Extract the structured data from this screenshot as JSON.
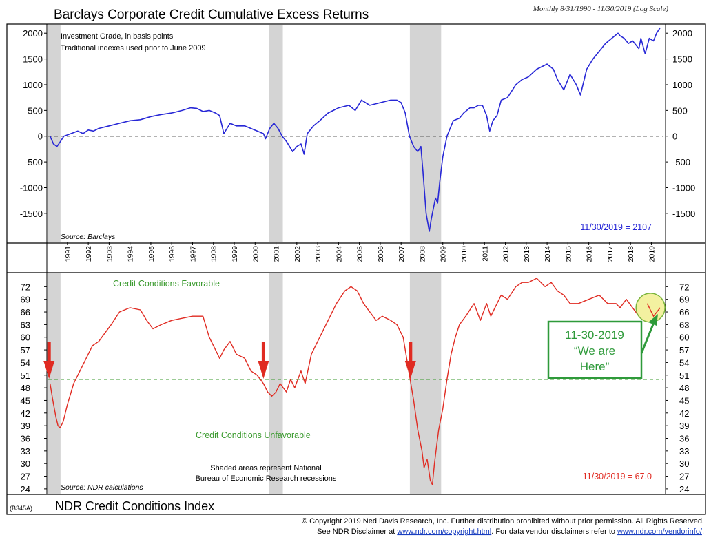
{
  "header": {
    "title_top": "Barclays Corporate Credit Cumulative Excess Returns",
    "date_range": "Monthly 8/31/1990 - 11/30/2019 (Log Scale)",
    "code": "(B345A)",
    "title_bottom": "NDR Credit Conditions Index"
  },
  "colors": {
    "top_line": "#2727d6",
    "bottom_line": "#e02b22",
    "recession": "#d4d4d4",
    "favorable_text": "#3a9a2e",
    "callout": "#2e9a3a",
    "highlight_fill": "#f3f1a0"
  },
  "recessions": [
    {
      "start": 1990.58,
      "end": 1991.17
    },
    {
      "start": 2001.17,
      "end": 2001.83
    },
    {
      "start": 2007.92,
      "end": 2009.42
    }
  ],
  "years": [
    "1991",
    "1992",
    "1993",
    "1994",
    "1995",
    "1996",
    "1997",
    "1998",
    "1999",
    "2000",
    "2001",
    "2002",
    "2003",
    "2004",
    "2005",
    "2006",
    "2007",
    "2008",
    "2009",
    "2010",
    "2011",
    "2012",
    "2013",
    "2014",
    "2015",
    "2016",
    "2017",
    "2018",
    "2019"
  ],
  "chart_data": [
    {
      "type": "line",
      "title": "Barclays Corporate Credit Cumulative Excess Returns",
      "subtitle": "Investment Grade, in basis points",
      "note": "Traditional indexes used prior to June 2009",
      "source": "Source: Barclays",
      "ylabel": "basis points",
      "ylim": [
        -2050,
        2150
      ],
      "yticks": [
        "2000",
        "1500",
        "1000",
        "500",
        "0",
        "-500",
        "-1000",
        "-1500"
      ],
      "reference_line": 0,
      "last_value_label": "11/30/2019 = 2107",
      "series": [
        {
          "name": "Cumulative Excess Returns",
          "x": [
            1990.67,
            1990.83,
            1991.0,
            1991.17,
            1991.33,
            1991.67,
            1992.0,
            1992.25,
            1992.5,
            1992.75,
            1993.0,
            1993.5,
            1994.0,
            1994.5,
            1995.0,
            1995.5,
            1996.0,
            1996.5,
            1997.0,
            1997.4,
            1997.7,
            1998.0,
            1998.3,
            1998.6,
            1998.8,
            1999.0,
            1999.3,
            1999.6,
            2000.0,
            2000.3,
            2000.6,
            2000.9,
            2001.0,
            2001.2,
            2001.4,
            2001.6,
            2001.8,
            2002.0,
            2002.3,
            2002.5,
            2002.7,
            2002.85,
            2003.0,
            2003.3,
            2003.6,
            2004.0,
            2004.5,
            2005.0,
            2005.3,
            2005.6,
            2006.0,
            2006.5,
            2007.0,
            2007.3,
            2007.5,
            2007.7,
            2007.9,
            2008.1,
            2008.3,
            2008.45,
            2008.55,
            2008.7,
            2008.85,
            2008.95,
            2009.05,
            2009.15,
            2009.25,
            2009.35,
            2009.5,
            2009.7,
            2010.0,
            2010.3,
            2010.5,
            2010.8,
            2011.0,
            2011.2,
            2011.4,
            2011.6,
            2011.75,
            2011.9,
            2012.1,
            2012.3,
            2012.6,
            2013.0,
            2013.3,
            2013.6,
            2014.0,
            2014.5,
            2014.8,
            2015.0,
            2015.3,
            2015.6,
            2015.9,
            2016.1,
            2016.4,
            2016.7,
            2017.0,
            2017.3,
            2017.6,
            2017.9,
            2018.0,
            2018.2,
            2018.4,
            2018.6,
            2018.9,
            2019.0,
            2019.2,
            2019.4,
            2019.6,
            2019.75,
            2019.92
          ],
          "y": [
            0,
            -150,
            -200,
            -100,
            0,
            50,
            100,
            50,
            120,
            100,
            150,
            200,
            250,
            300,
            320,
            380,
            420,
            450,
            500,
            550,
            540,
            480,
            500,
            450,
            400,
            50,
            250,
            200,
            200,
            150,
            100,
            50,
            -50,
            150,
            250,
            150,
            0,
            -100,
            -300,
            -200,
            -150,
            -350,
            50,
            200,
            300,
            450,
            550,
            600,
            500,
            700,
            600,
            650,
            700,
            700,
            650,
            450,
            0,
            -200,
            -300,
            -200,
            -700,
            -1500,
            -1850,
            -1600,
            -1400,
            -1200,
            -1300,
            -900,
            -400,
            0,
            300,
            350,
            450,
            550,
            550,
            600,
            600,
            400,
            100,
            300,
            400,
            700,
            750,
            1000,
            1100,
            1150,
            1300,
            1400,
            1300,
            1100,
            900,
            1200,
            1000,
            800,
            1300,
            1500,
            1650,
            1800,
            1900,
            2000,
            1950,
            1900,
            1800,
            1850,
            1700,
            1900,
            1600,
            1900,
            1850,
            2000,
            2107
          ]
        }
      ]
    },
    {
      "type": "line",
      "title": "NDR Credit Conditions Index",
      "source": "Source: NDR calculations",
      "ylim": [
        23,
        75
      ],
      "yticks": [
        "72",
        "69",
        "66",
        "63",
        "60",
        "57",
        "54",
        "51",
        "48",
        "45",
        "42",
        "39",
        "36",
        "33",
        "30",
        "27",
        "24"
      ],
      "reference_line": 50,
      "upper_label": "Credit Conditions Favorable",
      "lower_label": "Credit Conditions Unfavorable",
      "recession_note_1": "Shaded areas represent National",
      "recession_note_2": "Bureau of Economic Research recessions",
      "last_value_label": "11/30/2019 = 67.0",
      "callout_line1": "11-30-2019",
      "callout_line2": "“We are",
      "callout_line3": "Here”",
      "signal_arrows_x": [
        1990.62,
        2000.9,
        2007.95
      ],
      "series": [
        {
          "name": "NDR Credit Conditions Index",
          "x": [
            1990.67,
            1990.8,
            1990.95,
            1991.05,
            1991.15,
            1991.3,
            1991.5,
            1991.8,
            1992.1,
            1992.4,
            1992.7,
            1993.0,
            1993.3,
            1993.6,
            1994.0,
            1994.5,
            1995.0,
            1995.3,
            1995.6,
            1996.0,
            1996.5,
            1997.0,
            1997.5,
            1998.0,
            1998.3,
            1998.6,
            1998.8,
            1999.0,
            1999.3,
            1999.6,
            2000.0,
            2000.3,
            2000.6,
            2000.9,
            2001.1,
            2001.3,
            2001.5,
            2001.7,
            2002.0,
            2002.2,
            2002.4,
            2002.7,
            2002.9,
            2003.2,
            2003.6,
            2004.0,
            2004.4,
            2004.8,
            2005.1,
            2005.4,
            2005.7,
            2006.0,
            2006.3,
            2006.6,
            2007.0,
            2007.3,
            2007.6,
            2007.9,
            2008.1,
            2008.3,
            2008.5,
            2008.6,
            2008.75,
            2008.9,
            2009.0,
            2009.1,
            2009.2,
            2009.3,
            2009.5,
            2009.7,
            2009.9,
            2010.1,
            2010.3,
            2010.6,
            2011.0,
            2011.3,
            2011.6,
            2011.8,
            2012.0,
            2012.3,
            2012.6,
            2013.0,
            2013.3,
            2013.6,
            2014.0,
            2014.4,
            2014.7,
            2015.0,
            2015.3,
            2015.6,
            2016.0,
            2016.5,
            2017.0,
            2017.4,
            2017.8,
            2018.0,
            2018.3,
            2018.6,
            2018.9,
            2019.1,
            2019.3,
            2019.6,
            2019.92
          ],
          "y": [
            49,
            45,
            41,
            39,
            38.5,
            40,
            44,
            49,
            52,
            55,
            58,
            59,
            61,
            63,
            66,
            67,
            66.5,
            64,
            62,
            63,
            64,
            64.5,
            65,
            65,
            60,
            57,
            55,
            57,
            59,
            56,
            55,
            52,
            51,
            49,
            47,
            46,
            47,
            49,
            47,
            50,
            48,
            52,
            49,
            56,
            60,
            64,
            68,
            71,
            72,
            71,
            68,
            66,
            64,
            65,
            64,
            63,
            60,
            51,
            45,
            38,
            33,
            29,
            31,
            26,
            25,
            30,
            34,
            38,
            43,
            50,
            56,
            60,
            63,
            65,
            68,
            64,
            68,
            65,
            67,
            70,
            69,
            72,
            73,
            73,
            74,
            72,
            73,
            71,
            70,
            68,
            68,
            69,
            70,
            68,
            68,
            67,
            69,
            67,
            65,
            67,
            68,
            65,
            67
          ]
        }
      ]
    }
  ],
  "footer": {
    "line1": "© Copyright 2019 Ned Davis Research, Inc.  Further distribution prohibited without prior permission.  All Rights Reserved.",
    "line2a": "See NDR Disclaimer at ",
    "link1": "www.ndr.com/copyright.html",
    "line2b": ".  For data vendor disclaimers refer to ",
    "link2": "www.ndr.com/vendorinfo/",
    "line2c": "."
  }
}
